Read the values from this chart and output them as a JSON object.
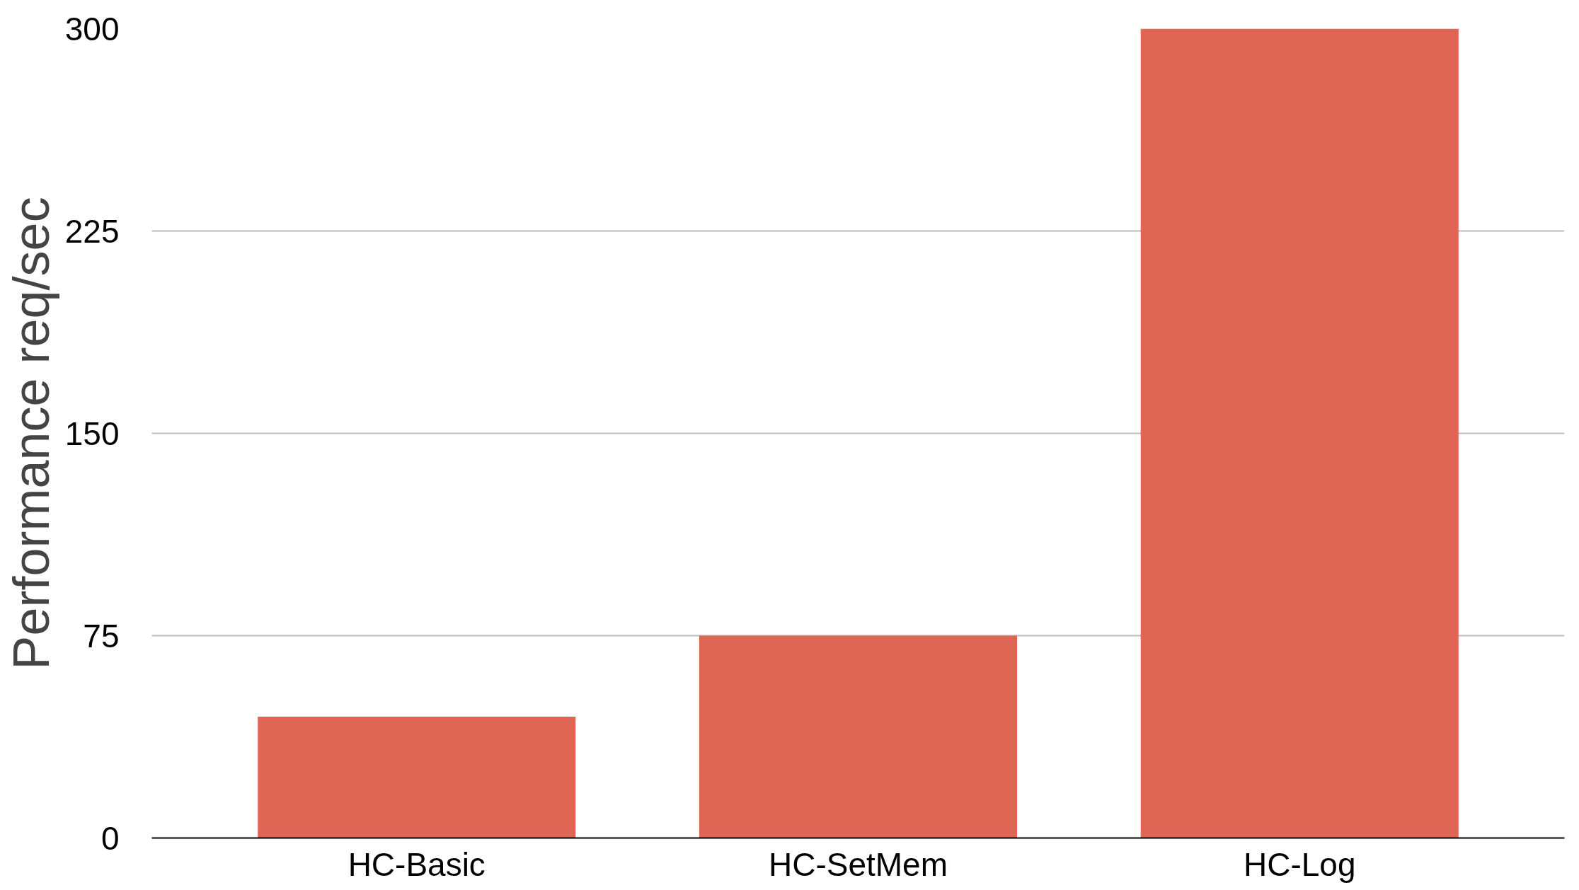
{
  "chart_data": {
    "type": "bar",
    "ylabel": "Performance req/sec",
    "categories": [
      "HC-Basic",
      "HC-SetMem",
      "HC-Log"
    ],
    "values": [
      45,
      75,
      300
    ],
    "color": "#df6555",
    "ylim": [
      0,
      300
    ],
    "yticks": [
      0,
      75,
      150,
      225,
      300
    ],
    "grid": "y"
  }
}
